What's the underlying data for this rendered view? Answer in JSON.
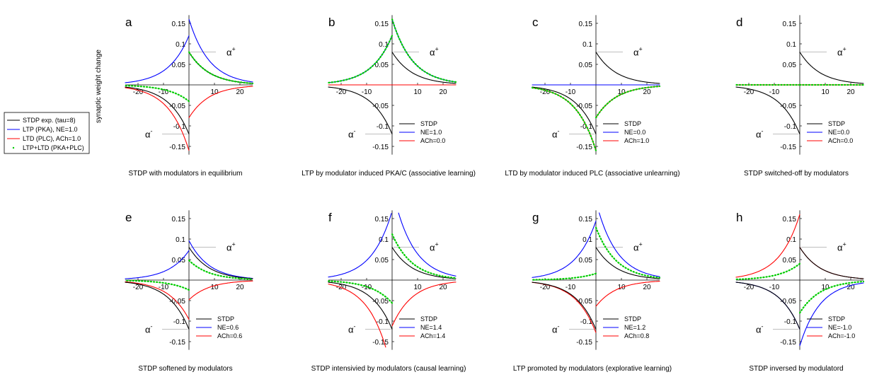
{
  "ylabel": "synaptic weight change",
  "legend": [
    {
      "label": "STDP exp. (tau=8)",
      "color": "#000000",
      "style": "solid"
    },
    {
      "label": "LTP (PKA), NE=1.0",
      "color": "#0000ff",
      "style": "solid"
    },
    {
      "label": "LTD (PLC), ACh=1.0",
      "color": "#ff0000",
      "style": "solid"
    },
    {
      "label": "LTP+LTD (PKA+PLC)",
      "color": "#00cc00",
      "style": "dotted"
    }
  ],
  "axis": {
    "xticks": [
      "-20",
      "-10",
      "10",
      "20"
    ],
    "yticks": [
      "0.15",
      "0.1",
      "0.05",
      "-0.05",
      "-0.1",
      "-0.15"
    ],
    "xlim": [
      -25,
      25
    ],
    "ylim": [
      -0.17,
      0.17
    ]
  },
  "alpha_plus": "α",
  "alpha_plus_sup": "+",
  "alpha_minus": "α",
  "alpha_minus_sup": "-",
  "colors": {
    "stdp": "#000000",
    "ne": "#0000ff",
    "ach": "#ff0000",
    "sum": "#00cc00"
  },
  "chart_data": [
    {
      "type": "line",
      "letter": "a",
      "caption": "STDP with modulators in equilibrium",
      "legend": null,
      "ne": 1.0,
      "ach": 1.0,
      "series": [
        {
          "name": "STDP",
          "peak_pos": 0.08,
          "peak_neg": -0.12,
          "tau": 8
        },
        {
          "name": "LTP (PKA)",
          "pos": 0.16,
          "neg": 0.12,
          "tau": 8
        },
        {
          "name": "LTD (PLC)",
          "pos": -0.08,
          "neg": -0.16,
          "tau": 8
        },
        {
          "name": "LTP+LTD",
          "pos": 0.08,
          "neg": -0.04,
          "tau": 8
        }
      ]
    },
    {
      "type": "line",
      "letter": "b",
      "caption": "LTP by modulator induced PKA/C (associative learning)",
      "legend": [
        "STDP",
        "NE=1.0",
        "ACh=0.0"
      ],
      "ne": 1.0,
      "ach": 0.0
    },
    {
      "type": "line",
      "letter": "c",
      "caption": "LTD by modulator induced PLC (associative unlearning)",
      "legend": [
        "STDP",
        "NE=0.0",
        "ACh=1.0"
      ],
      "ne": 0.0,
      "ach": 1.0
    },
    {
      "type": "line",
      "letter": "d",
      "caption": "STDP switched-off by modulators",
      "legend": [
        "STDP",
        "NE=0.0",
        "ACh=0.0"
      ],
      "ne": 0.0,
      "ach": 0.0
    },
    {
      "type": "line",
      "letter": "e",
      "caption": "STDP softened by modulators",
      "legend": [
        "STDP",
        "NE=0.6",
        "ACh=0.6"
      ],
      "ne": 0.6,
      "ach": 0.6
    },
    {
      "type": "line",
      "letter": "f",
      "caption": "STDP intensivied by modulators (causal learning)",
      "legend": [
        "STDP",
        "NE=1.4",
        "ACh=1.4"
      ],
      "ne": 1.4,
      "ach": 1.4
    },
    {
      "type": "line",
      "letter": "g",
      "caption": "LTP promoted by modulators (explorative learning)",
      "legend": [
        "STDP",
        "NE=1.2",
        "ACh=0.8"
      ],
      "ne": 1.2,
      "ach": 0.8
    },
    {
      "type": "line",
      "letter": "h",
      "caption": "STDP inversed by modulatord",
      "legend": [
        "STDP",
        "NE=-1.0",
        "ACh=-1.0"
      ],
      "ne": -1.0,
      "ach": -1.0
    }
  ]
}
